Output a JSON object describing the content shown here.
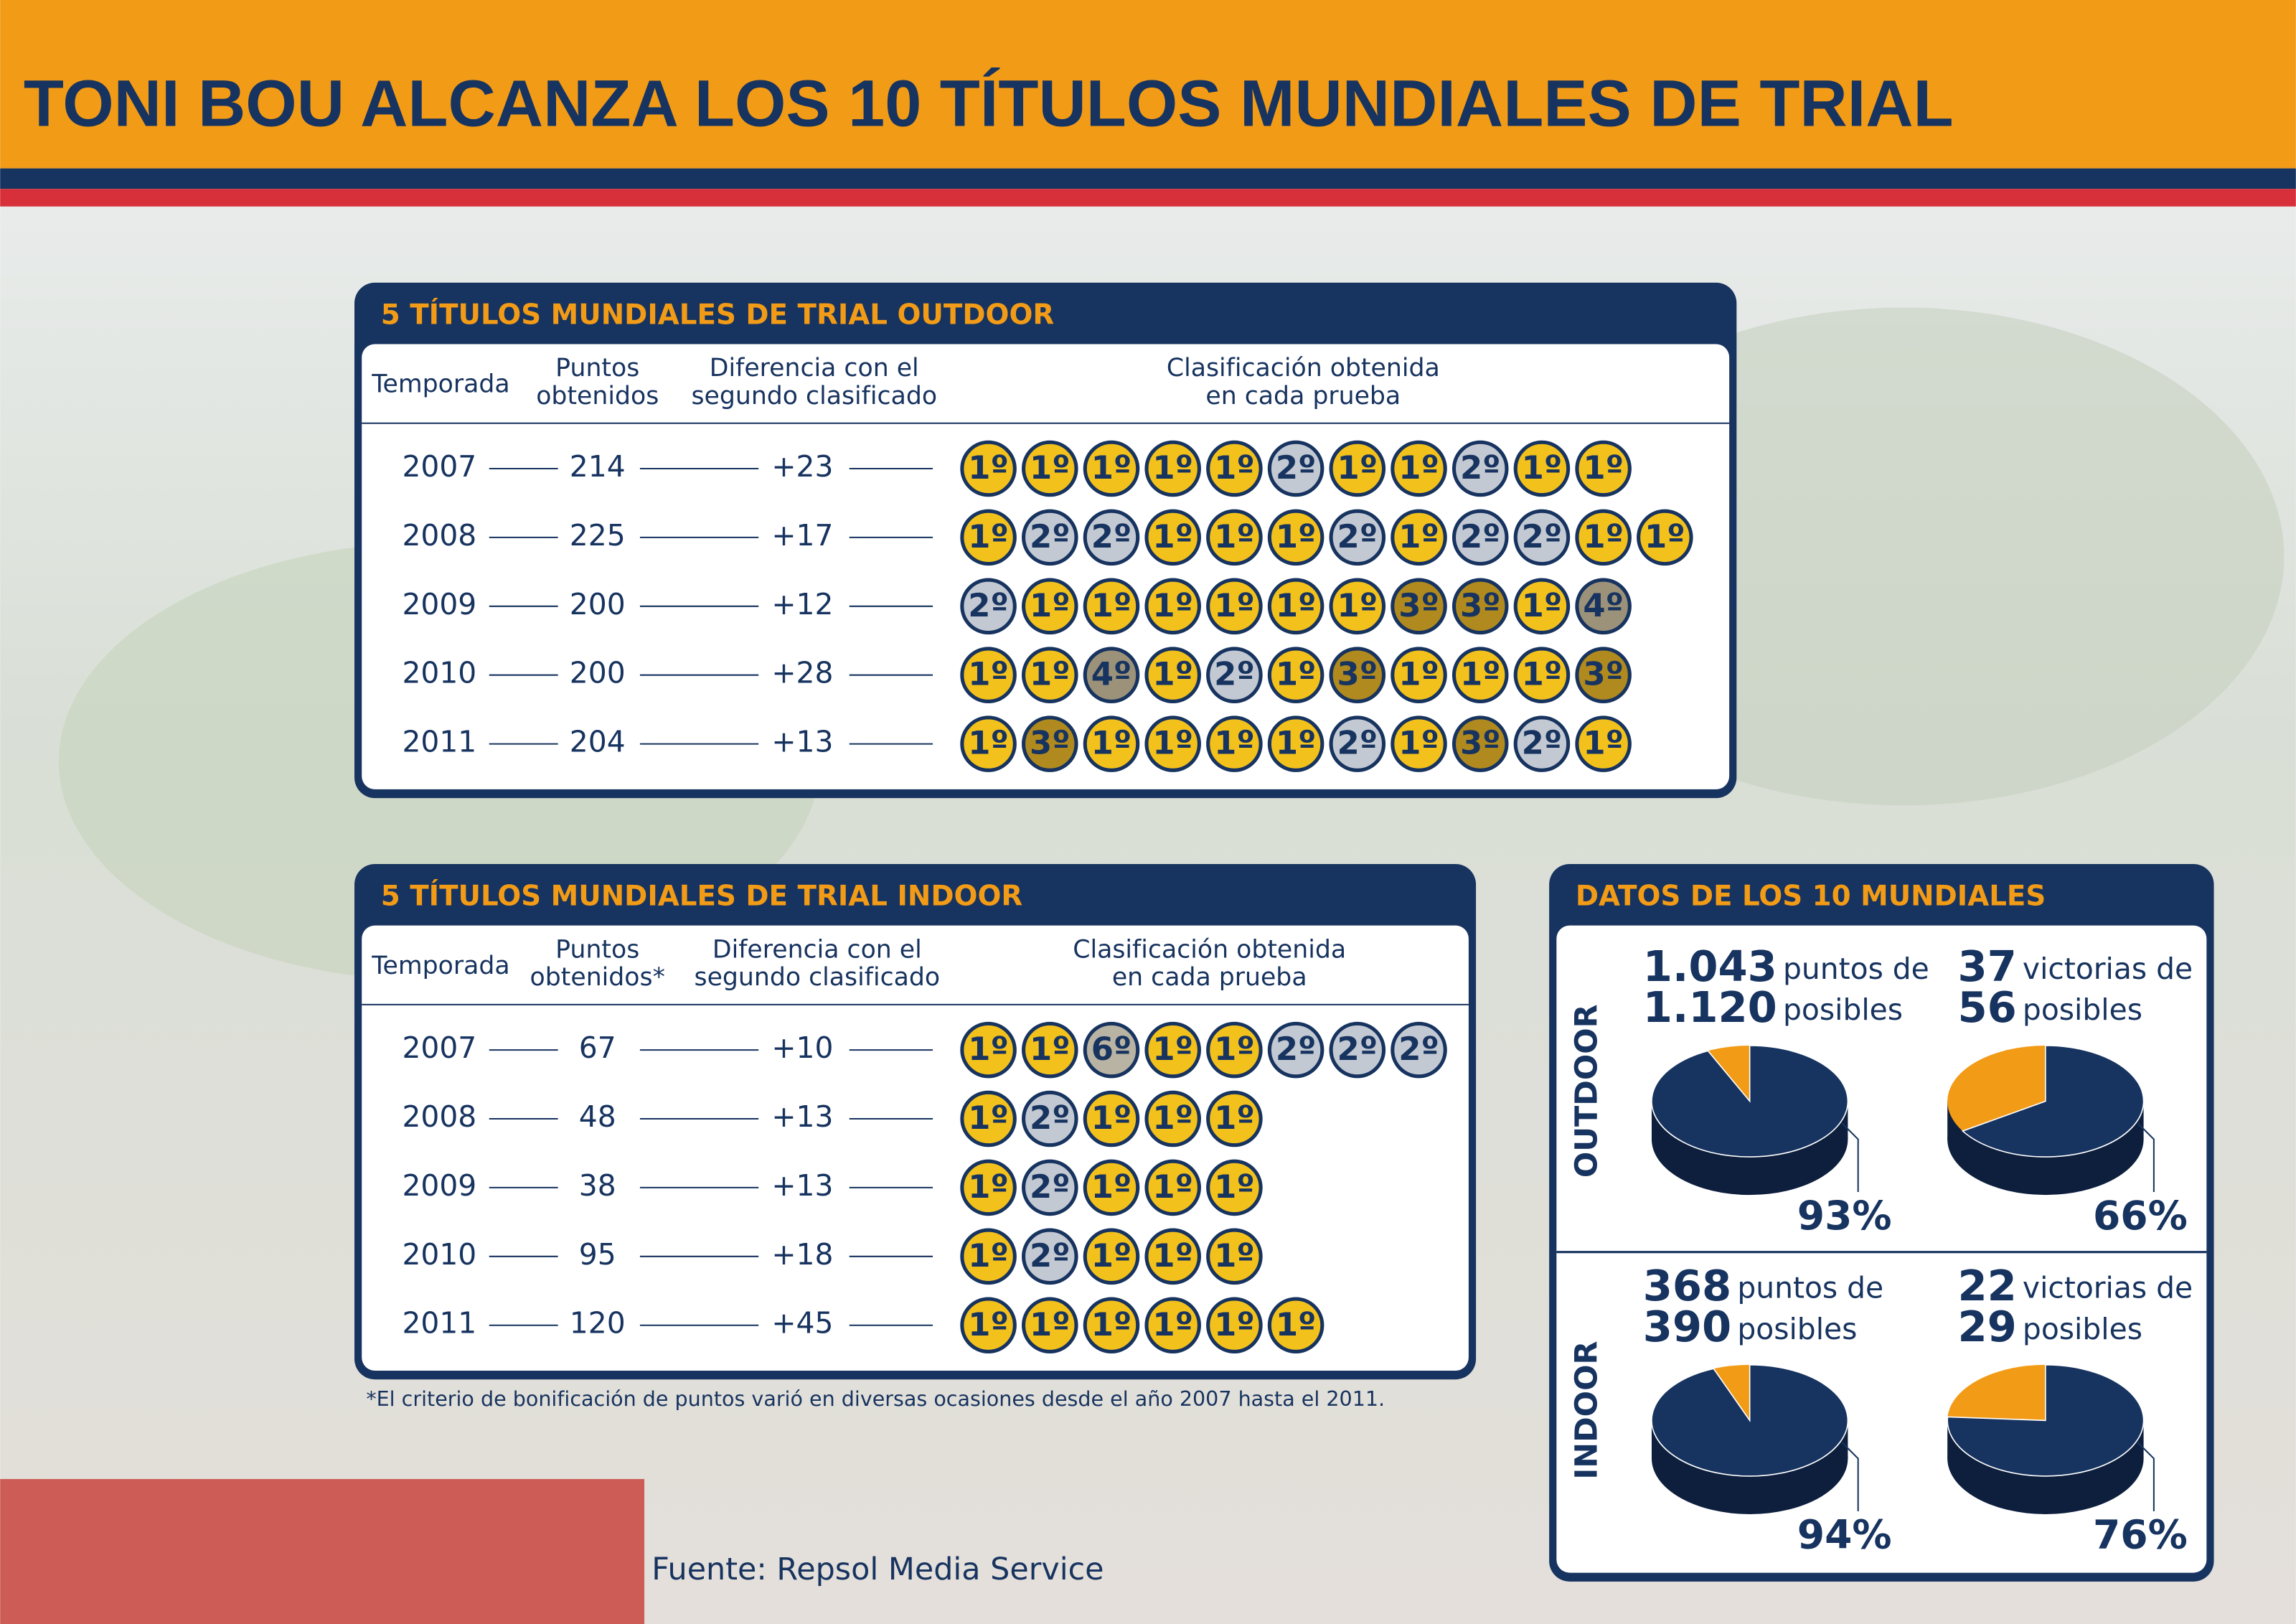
{
  "title": "TONI BOU ALCANZA LOS 10 TÍTULOS MUNDIALES DE TRIAL",
  "outdoor": {
    "title": "5 TÍTULOS MUNDIALES DE TRIAL OUTDOOR",
    "columns": [
      [
        "Temporada"
      ],
      [
        "Puntos",
        "obtenidos"
      ],
      [
        "Diferencia con el",
        "segundo clasificado"
      ],
      [
        "Clasificación obtenida",
        "en cada prueba"
      ]
    ],
    "rows": [
      {
        "season": "2007",
        "points": "214",
        "difference": "+23",
        "results": [
          "1º",
          "1º",
          "1º",
          "1º",
          "1º",
          "2º",
          "1º",
          "1º",
          "2º",
          "1º",
          "1º"
        ]
      },
      {
        "season": "2008",
        "points": "225",
        "difference": "+17",
        "results": [
          "1º",
          "2º",
          "2º",
          "1º",
          "1º",
          "1º",
          "2º",
          "1º",
          "2º",
          "2º",
          "1º",
          "1º"
        ]
      },
      {
        "season": "2009",
        "points": "200",
        "difference": "+12",
        "results": [
          "2º",
          "1º",
          "1º",
          "1º",
          "1º",
          "1º",
          "1º",
          "3º",
          "3º",
          "1º",
          "4º"
        ]
      },
      {
        "season": "2010",
        "points": "200",
        "difference": "+28",
        "results": [
          "1º",
          "1º",
          "4º",
          "1º",
          "2º",
          "1º",
          "3º",
          "1º",
          "1º",
          "1º",
          "3º"
        ]
      },
      {
        "season": "2011",
        "points": "204",
        "difference": "+13",
        "results": [
          "1º",
          "3º",
          "1º",
          "1º",
          "1º",
          "1º",
          "2º",
          "1º",
          "3º",
          "2º",
          "1º"
        ]
      }
    ]
  },
  "indoor": {
    "title": "5 TÍTULOS MUNDIALES DE TRIAL INDOOR",
    "columns": [
      [
        "Temporada"
      ],
      [
        "Puntos",
        "obtenidos*"
      ],
      [
        "Diferencia con el",
        "segundo clasificado"
      ],
      [
        "Clasificación obtenida",
        "en cada prueba"
      ]
    ],
    "rows": [
      {
        "season": "2007",
        "points": "67",
        "difference": "+10",
        "results": [
          "1º",
          "1º",
          "6º",
          "1º",
          "1º",
          "2º",
          "2º",
          "2º"
        ]
      },
      {
        "season": "2008",
        "points": "48",
        "difference": "+13",
        "results": [
          "1º",
          "2º",
          "1º",
          "1º",
          "1º"
        ]
      },
      {
        "season": "2009",
        "points": "38",
        "difference": "+13",
        "results": [
          "1º",
          "2º",
          "1º",
          "1º",
          "1º"
        ]
      },
      {
        "season": "2010",
        "points": "95",
        "difference": "+18",
        "results": [
          "1º",
          "2º",
          "1º",
          "1º",
          "1º"
        ]
      },
      {
        "season": "2011",
        "points": "120",
        "difference": "+45",
        "results": [
          "1º",
          "1º",
          "1º",
          "1º",
          "1º",
          "1º"
        ]
      }
    ]
  },
  "footnote": "*El criterio de bonificación de puntos varió en diversas ocasiones  desde el año 2007 hasta el 2011.",
  "stats": {
    "title": "DATOS DE LOS 10 MUNDIALES",
    "groups": [
      {
        "label": "OUTDOOR",
        "items": [
          {
            "value": "1.043",
            "value_text": "puntos de",
            "total": "1.120",
            "total_text": "posibles",
            "percent": 93,
            "percent_label": "93%"
          },
          {
            "value": "37",
            "value_text": "victorias de",
            "total": "56",
            "total_text": "posibles",
            "percent": 66,
            "percent_label": "66%"
          }
        ]
      },
      {
        "label": "INDOOR",
        "items": [
          {
            "value": "368",
            "value_text": "puntos de",
            "total": "390",
            "total_text": "posibles",
            "percent": 94,
            "percent_label": "94%"
          },
          {
            "value": "22",
            "value_text": "victorias de",
            "total": "29",
            "total_text": "posibles",
            "percent": 76,
            "percent_label": "76%"
          }
        ]
      }
    ]
  },
  "source": "Fuente: Repsol Media Service"
}
